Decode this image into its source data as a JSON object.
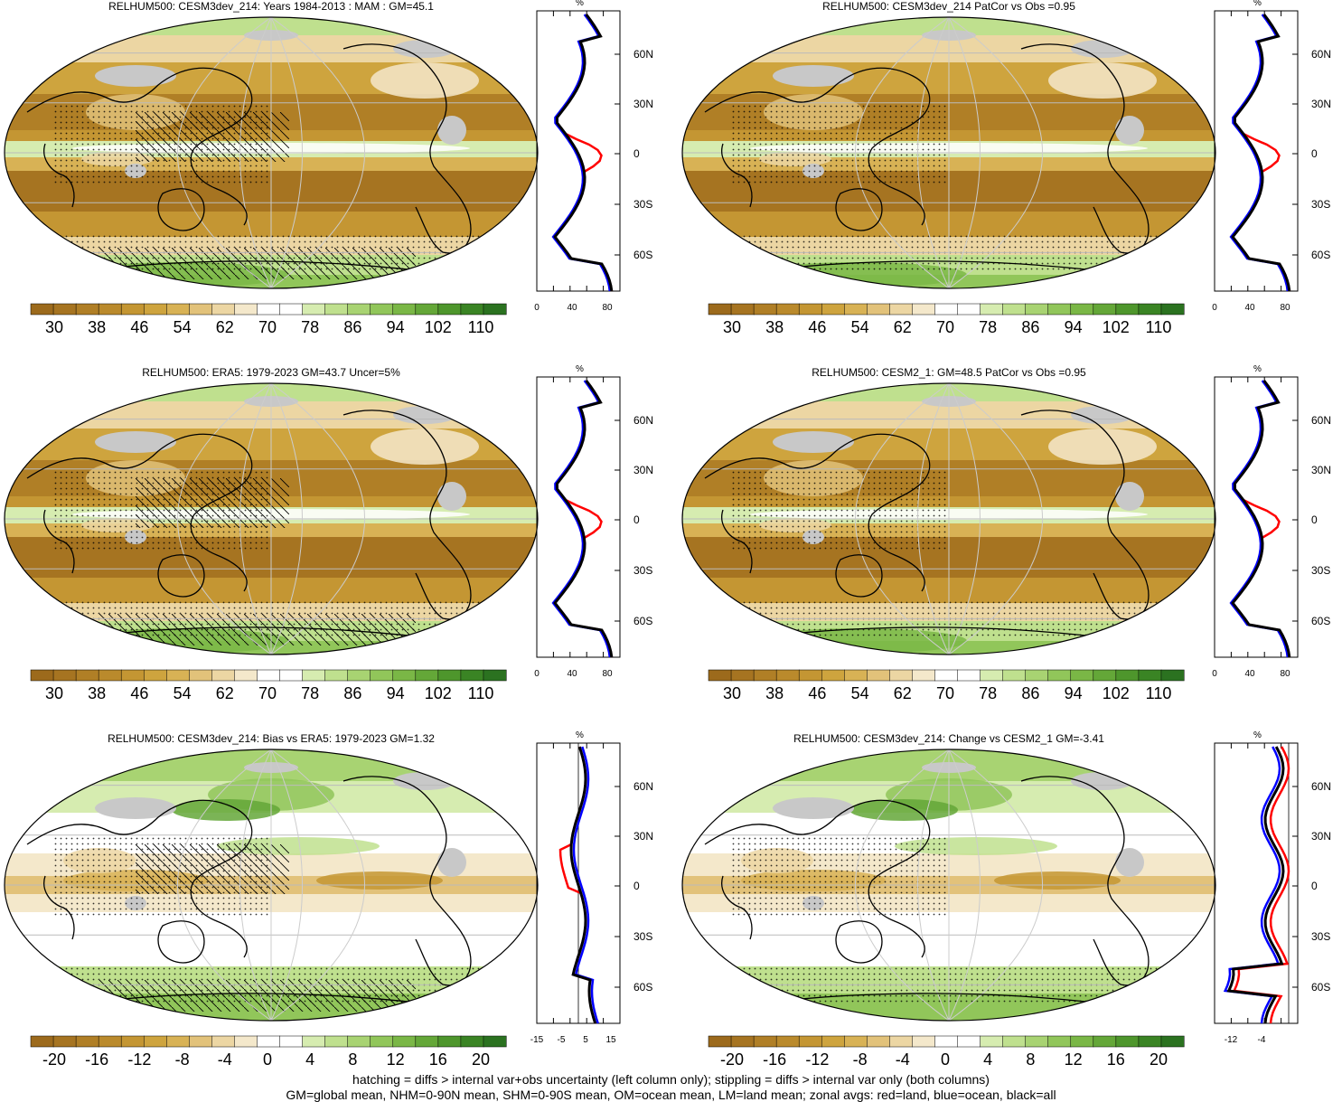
{
  "panels": [
    {
      "title": "RELHUM500: CESM3dev_214: Years 1984-2013 : MAM : GM=45.1",
      "scale": "abs",
      "cbar_labels": [
        "30",
        "38",
        "46",
        "54",
        "62",
        "70",
        "78",
        "86",
        "94",
        "102",
        "110"
      ],
      "profile_ticks": [
        "0",
        "40",
        "80"
      ],
      "hatch": true
    },
    {
      "title": "RELHUM500: CESM3dev_214 PatCor vs Obs =0.95",
      "scale": "abs",
      "cbar_labels": [
        "30",
        "38",
        "46",
        "54",
        "62",
        "70",
        "78",
        "86",
        "94",
        "102",
        "110"
      ],
      "profile_ticks": [
        "0",
        "40",
        "80"
      ],
      "hatch": false
    },
    {
      "title": "RELHUM500: ERA5: 1979-2023 GM=43.7 Uncer=5%",
      "scale": "abs",
      "cbar_labels": [
        "30",
        "38",
        "46",
        "54",
        "62",
        "70",
        "78",
        "86",
        "94",
        "102",
        "110"
      ],
      "profile_ticks": [
        "0",
        "40",
        "80"
      ],
      "hatch": true
    },
    {
      "title": "RELHUM500: CESM2_1: GM=48.5 PatCor vs Obs =0.95",
      "scale": "abs",
      "cbar_labels": [
        "30",
        "38",
        "46",
        "54",
        "62",
        "70",
        "78",
        "86",
        "94",
        "102",
        "110"
      ],
      "profile_ticks": [
        "0",
        "40",
        "80"
      ],
      "hatch": false
    },
    {
      "title": "RELHUM500: CESM3dev_214: Bias vs ERA5: 1979-2023 GM=1.32",
      "scale": "diff",
      "cbar_labels": [
        "-20",
        "-16",
        "-12",
        "-8",
        "-4",
        "0",
        "4",
        "8",
        "12",
        "16",
        "20"
      ],
      "profile_ticks": [
        "-15",
        "-5",
        "5",
        "15"
      ],
      "hatch": true
    },
    {
      "title": "RELHUM500: CESM3dev_214: Change vs CESM2_1 GM=-3.41",
      "scale": "diff",
      "cbar_labels": [
        "-20",
        "-16",
        "-12",
        "-8",
        "-4",
        "0",
        "4",
        "8",
        "12",
        "16",
        "20"
      ],
      "profile_ticks": [
        "-12",
        "-4"
      ],
      "hatch": false
    }
  ],
  "lat_labels": [
    "60N",
    "30N",
    "0",
    "30S",
    "60S"
  ],
  "percent_label": "%",
  "colors": {
    "abs": [
      "#9c6a1c",
      "#a67421",
      "#b07f26",
      "#ba8a2c",
      "#c49633",
      "#cea43e",
      "#d8b255",
      "#e2c27a",
      "#ecd6a3",
      "#f4e8cb",
      "#ffffff",
      "#ffffff",
      "#d6ecb0",
      "#bfe08e",
      "#a8d372",
      "#91c65a",
      "#7ab746",
      "#64a738",
      "#4e962c",
      "#3a8424",
      "#2b7220"
    ],
    "diff": [
      "#9c6a1c",
      "#a67421",
      "#b07f26",
      "#ba8a2c",
      "#c49633",
      "#cea43e",
      "#d8b255",
      "#e2c27a",
      "#ecd6a3",
      "#f4e8cb",
      "#ffffff",
      "#ffffff",
      "#d6ecb0",
      "#bfe08e",
      "#a8d372",
      "#91c65a",
      "#7ab746",
      "#64a738",
      "#4e962c",
      "#3a8424",
      "#2b7220"
    ],
    "land_line": "#000000",
    "zonal_land": "#ff0000",
    "zonal_ocean": "#0000ff",
    "zonal_all": "#000000",
    "missing": "#c8c8c8"
  },
  "footer": {
    "line1": "hatching = diffs > internal var+obs uncertainty (left column only); stippling = diffs > internal var only (both columns)",
    "line2": "GM=global mean, NHM=0-90N mean, SHM=0-90S mean, OM=ocean mean, LM=land mean; zonal avgs: red=land, blue=ocean, black=all"
  }
}
